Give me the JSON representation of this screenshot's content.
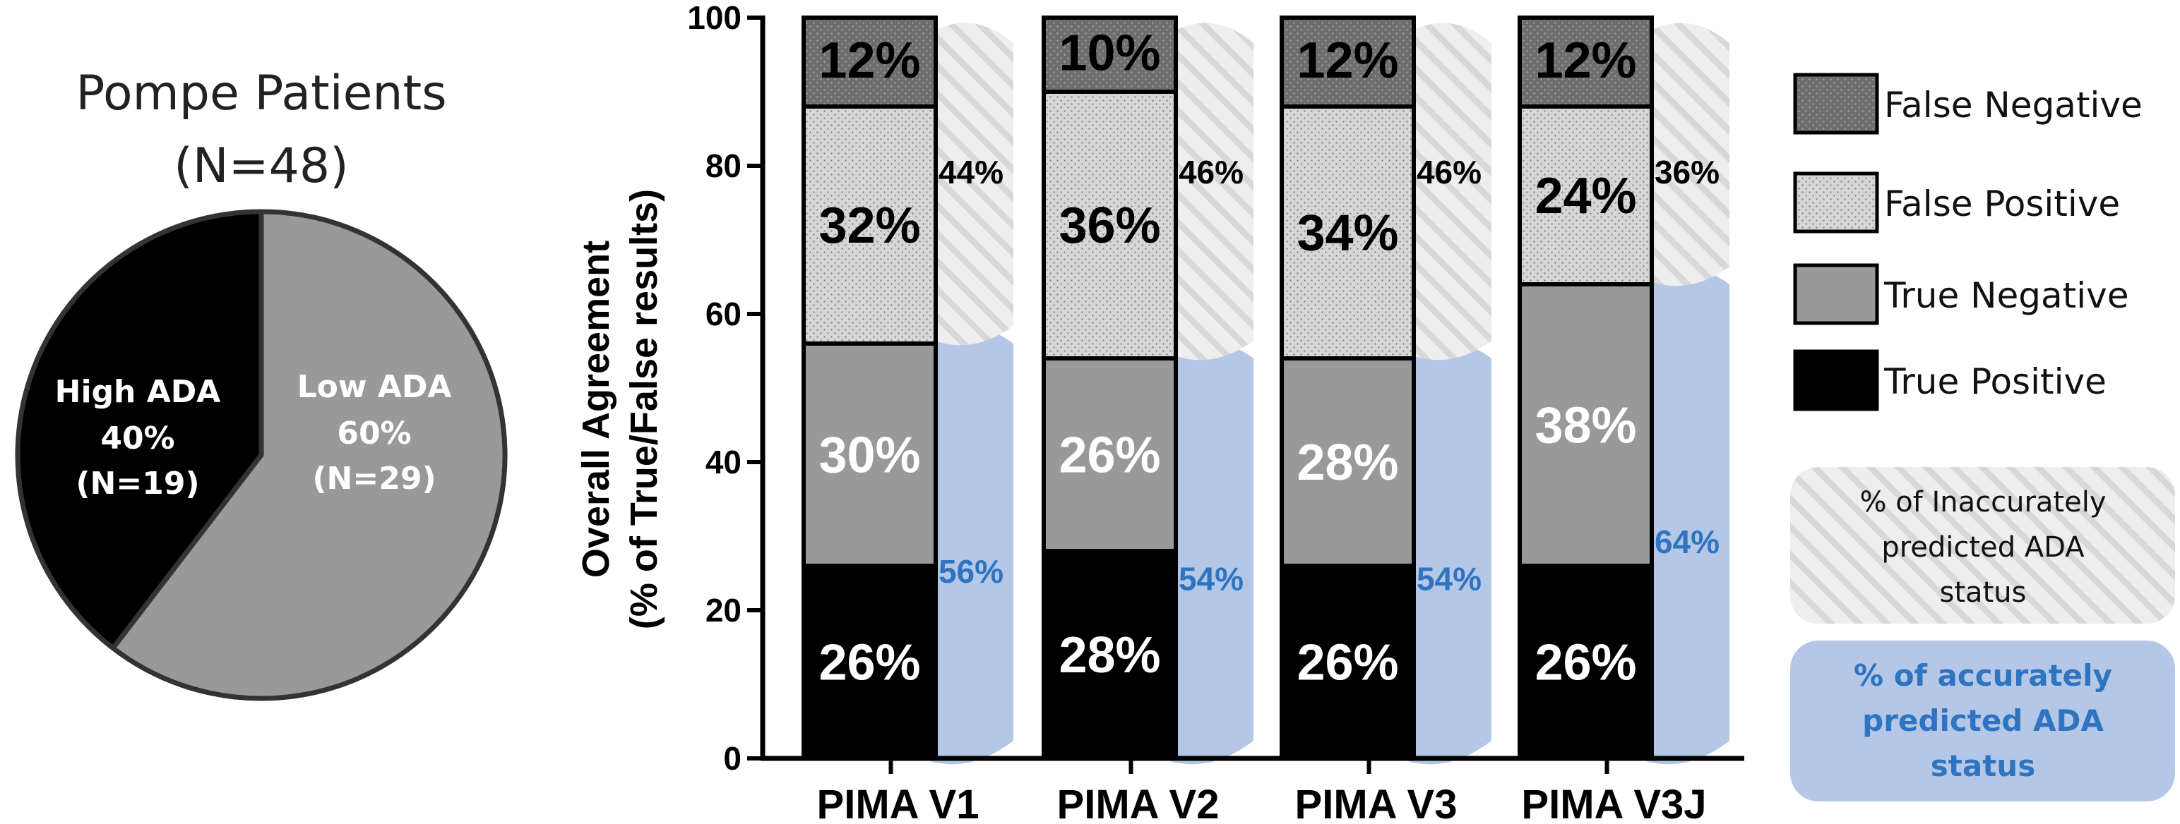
{
  "colors": {
    "true_positive": "#000000",
    "true_negative": "#999999",
    "false_positive": "#d6d6d6",
    "false_negative": "#6e6e6e",
    "accurate": "#b4c7e7",
    "accurate_text": "#2f74c0",
    "inaccurate": "#e6e6e6"
  },
  "pie": {
    "title_line1": "Pompe Patients",
    "title_line2": "(N=48)",
    "slices": [
      {
        "name": "High ADA",
        "pct": "40%",
        "n": "(N=19)",
        "value": 19,
        "color": "#000000"
      },
      {
        "name": "Low ADA",
        "pct": "60%",
        "n": "(N=29)",
        "value": 29,
        "color": "#999999"
      }
    ]
  },
  "chart_data": {
    "type": "bar",
    "stacked": true,
    "ylabel_line1": "Overall Agreement",
    "ylabel_line2": "(% of True/False results)",
    "ylim": [
      0,
      100
    ],
    "yticks": [
      0,
      20,
      40,
      60,
      80,
      100
    ],
    "categories": [
      "PIMA V1",
      "PIMA V2",
      "PIMA V3",
      "PIMA V3J"
    ],
    "series": [
      {
        "name": "True Positive",
        "key": "true_positive",
        "values": [
          26,
          28,
          26,
          26
        ],
        "labels": [
          "26%",
          "28%",
          "26%",
          "26%"
        ]
      },
      {
        "name": "True Negative",
        "key": "true_negative",
        "values": [
          30,
          26,
          28,
          38
        ],
        "labels": [
          "30%",
          "26%",
          "28%",
          "38%"
        ]
      },
      {
        "name": "False Positive",
        "key": "false_positive",
        "values": [
          32,
          36,
          34,
          24
        ],
        "labels": [
          "32%",
          "36%",
          "34%",
          "24%"
        ]
      },
      {
        "name": "False Negative",
        "key": "false_negative",
        "values": [
          12,
          10,
          12,
          12
        ],
        "labels": [
          "12%",
          "10%",
          "12%",
          "12%"
        ]
      }
    ],
    "accurate_pct": [
      56,
      54,
      54,
      64
    ],
    "accurate_labels": [
      "56%",
      "54%",
      "54%",
      "64%"
    ],
    "inaccurate_pct": [
      44,
      46,
      46,
      36
    ],
    "inaccurate_labels": [
      "44%",
      "46%",
      "46%",
      "36%"
    ],
    "legend_placement": "right",
    "legend": [
      {
        "label": "False Negative",
        "key": "false_negative"
      },
      {
        "label": "False Positive",
        "key": "false_positive"
      },
      {
        "label": "True Negative",
        "key": "true_negative"
      },
      {
        "label": "True Positive",
        "key": "true_positive"
      }
    ],
    "note_inaccurate": [
      "% of Inaccurately",
      "predicted ADA",
      "status"
    ],
    "note_accurate": [
      "% of accurately",
      "predicted ADA",
      "status"
    ]
  }
}
